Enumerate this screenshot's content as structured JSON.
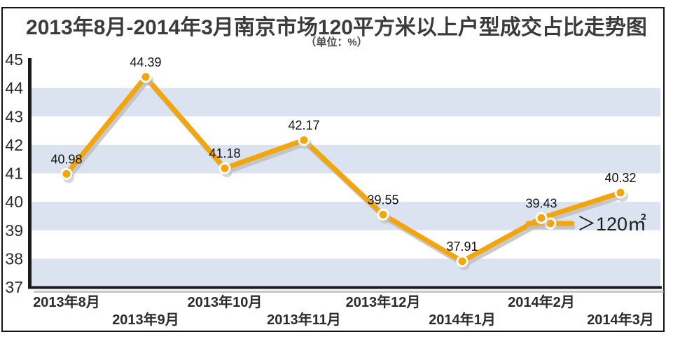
{
  "title": "2013年8月-2014年3月南京市场120平方米以上户型成交占比走势图",
  "subtitle": "（单位：%）",
  "legend": {
    "label": "＞120㎡"
  },
  "colors": {
    "line": "#F2A50C",
    "line_shadow": "#BDBDBD",
    "band": "#DAE3EF",
    "axis": "#1A1A1A",
    "axis_shadow": "#9A9A9A",
    "value_label": "#111111",
    "tick_label": "#2B2B2B",
    "dot_ring": "#FFFFFF",
    "title_text": "#3B3B3B"
  },
  "chart_data": {
    "type": "line",
    "title": "2013年8月-2014年3月南京市场120平方米以上户型成交占比走势图",
    "subtitle_unit": "（单位：%）",
    "categories": [
      "2013年8月",
      "2013年9月",
      "2013年10月",
      "2013年11月",
      "2013年12月",
      "2014年1月",
      "2014年2月",
      "2014年3月"
    ],
    "series": [
      {
        "name": "＞120㎡",
        "values": [
          40.98,
          44.39,
          41.18,
          42.17,
          39.55,
          37.91,
          39.43,
          40.32
        ]
      }
    ],
    "ylim": [
      37,
      45
    ],
    "y_ticks": [
      45,
      44,
      43,
      42,
      41,
      40,
      39,
      38,
      37
    ],
    "grid": "alternating-horizontal-bands",
    "band_pairs": [
      [
        44,
        43
      ],
      [
        42,
        41
      ],
      [
        40,
        39
      ],
      [
        38,
        37
      ]
    ],
    "legend_position": "middle-right",
    "data_labels_shown": true
  }
}
